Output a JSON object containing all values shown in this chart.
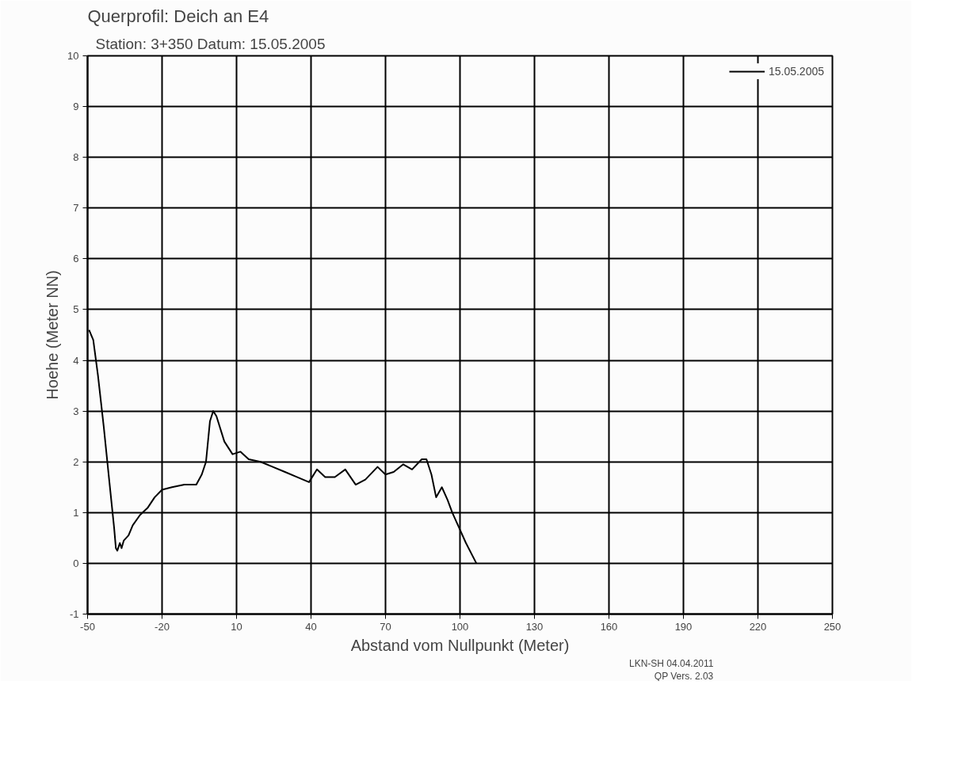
{
  "chart_data": {
    "type": "line",
    "title": "Querprofil: Deich an E4",
    "subtitle": "Station:   3+350  Datum: 15.05.2005",
    "xlabel": "Abstand vom Nullpunkt (Meter)",
    "ylabel": "Hoehe (Meter NN)",
    "xlim": [
      -50,
      250
    ],
    "xticks": [
      -50,
      -20,
      10,
      40,
      70,
      100,
      130,
      160,
      190,
      220,
      250
    ],
    "ylim": [
      -1,
      10
    ],
    "yticks": [
      -1,
      0,
      1,
      2,
      3,
      4,
      5,
      6,
      7,
      8,
      9,
      10
    ],
    "grid": true,
    "legend": "top right",
    "marker": "none",
    "line_style": "solid",
    "annotations": [
      {
        "text": "LKN-SH 04.04.2011"
      },
      {
        "text": "QP Vers. 2.03"
      }
    ],
    "series": [
      {
        "name": "15.05.2005",
        "color": "#000000",
        "x": [
          -49.4,
          -47.7,
          -45.8,
          -43.5,
          -41.2,
          -39.3,
          -38.6,
          -38,
          -37,
          -36.3,
          -35.4,
          -33.5,
          -31.8,
          -28.9,
          -25.7,
          -23,
          -20,
          -16,
          -11,
          -6.2,
          -4,
          -2.3,
          -0.7,
          0.6,
          1.9,
          5.1,
          8.4,
          11.6,
          14.9,
          19.7,
          24.6,
          29.5,
          34.3,
          39.2,
          42.4,
          45.7,
          49.6,
          53.8,
          58,
          61.9,
          66.8,
          70,
          73.3,
          77.1,
          80.7,
          84.6,
          86.5,
          88.5,
          90.4,
          92.7,
          95,
          96.9,
          99.2,
          102.4,
          106.6
        ],
        "values": [
          4.6,
          4.4,
          3.7,
          2.7,
          1.6,
          0.7,
          0.3,
          0.25,
          0.4,
          0.3,
          0.45,
          0.55,
          0.75,
          0.95,
          1.1,
          1.3,
          1.45,
          1.5,
          1.55,
          1.55,
          1.75,
          2.0,
          2.8,
          3.0,
          2.9,
          2.4,
          2.15,
          2.2,
          2.05,
          2.0,
          1.9,
          1.8,
          1.7,
          1.6,
          1.85,
          1.7,
          1.7,
          1.85,
          1.55,
          1.65,
          1.9,
          1.75,
          1.8,
          1.95,
          1.85,
          2.05,
          2.05,
          1.75,
          1.3,
          1.5,
          1.25,
          1.0,
          0.75,
          0.4,
          0.0
        ]
      }
    ]
  }
}
